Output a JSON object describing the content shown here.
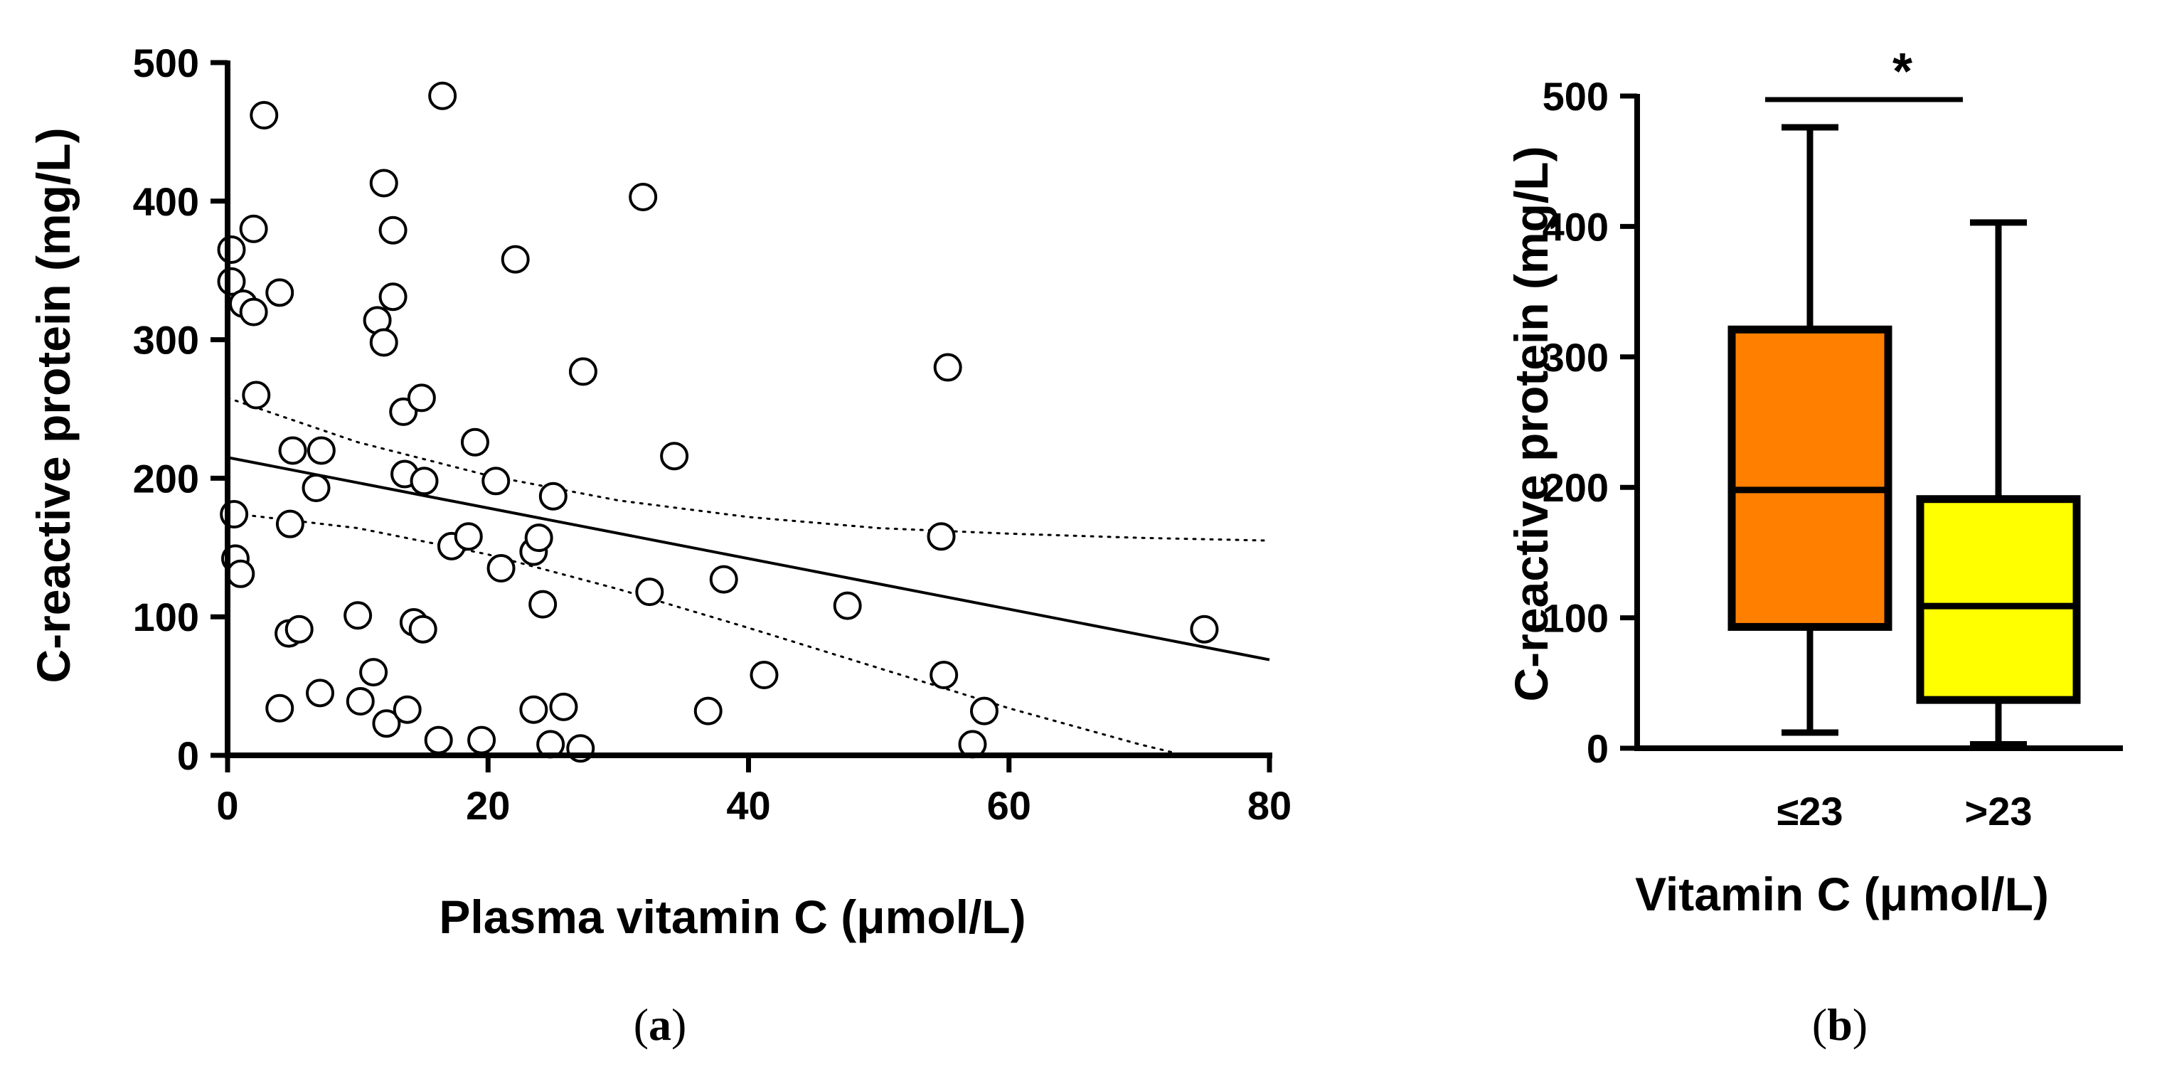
{
  "chart_data": [
    {
      "type": "scatter",
      "panel_label": {
        "open": "(",
        "letter": "a",
        "close": ")"
      },
      "xlabel": "Plasma vitamin C (μmol/L)",
      "ylabel": "C-reactive protein (mg/L)",
      "xlim": [
        0,
        80
      ],
      "ylim": [
        0,
        500
      ],
      "xticks": [
        0,
        20,
        40,
        60,
        80
      ],
      "yticks": [
        0,
        100,
        200,
        300,
        400,
        500
      ],
      "grid": false,
      "points": [
        [
          0.3,
          365
        ],
        [
          0.3,
          342
        ],
        [
          1.2,
          326
        ],
        [
          2.0,
          380
        ],
        [
          2.0,
          320
        ],
        [
          2.8,
          462
        ],
        [
          2.2,
          260
        ],
        [
          4.0,
          334
        ],
        [
          0.5,
          174
        ],
        [
          0.6,
          142
        ],
        [
          1.0,
          131
        ],
        [
          5.0,
          220
        ],
        [
          4.8,
          167
        ],
        [
          4.7,
          88
        ],
        [
          5.5,
          91
        ],
        [
          7.2,
          220
        ],
        [
          6.8,
          193
        ],
        [
          4.0,
          34
        ],
        [
          7.1,
          45
        ],
        [
          10.0,
          101
        ],
        [
          10.2,
          39
        ],
        [
          11.2,
          60
        ],
        [
          12.2,
          23
        ],
        [
          11.5,
          314
        ],
        [
          12.0,
          298
        ],
        [
          12.0,
          413
        ],
        [
          12.7,
          379
        ],
        [
          12.7,
          331
        ],
        [
          13.5,
          248
        ],
        [
          13.6,
          203
        ],
        [
          14.9,
          258
        ],
        [
          15.1,
          198
        ],
        [
          14.3,
          96
        ],
        [
          15.0,
          91
        ],
        [
          13.8,
          33
        ],
        [
          16.5,
          476
        ],
        [
          16.2,
          11
        ],
        [
          17.2,
          151
        ],
        [
          18.5,
          158
        ],
        [
          19.0,
          226
        ],
        [
          19.5,
          11
        ],
        [
          20.6,
          198
        ],
        [
          21.0,
          135
        ],
        [
          22.1,
          358
        ],
        [
          23.5,
          147
        ],
        [
          23.9,
          157
        ],
        [
          24.2,
          109
        ],
        [
          23.5,
          33
        ],
        [
          25.0,
          187
        ],
        [
          24.8,
          8
        ],
        [
          25.8,
          35
        ],
        [
          27.3,
          277
        ],
        [
          27.1,
          5
        ],
        [
          31.9,
          403
        ],
        [
          32.4,
          118
        ],
        [
          34.3,
          216
        ],
        [
          36.9,
          32
        ],
        [
          38.1,
          127
        ],
        [
          41.2,
          58
        ],
        [
          47.6,
          108
        ],
        [
          54.8,
          158
        ],
        [
          55.3,
          280
        ],
        [
          55.0,
          58
        ],
        [
          57.2,
          8
        ],
        [
          58.1,
          32
        ],
        [
          75.0,
          91
        ]
      ],
      "regression": {
        "x": [
          0,
          80
        ],
        "y": [
          215,
          69
        ]
      },
      "ci_upper": {
        "x": [
          0,
          10,
          20,
          30,
          40,
          50,
          60,
          70,
          80
        ],
        "y": [
          258,
          226,
          202,
          184,
          172,
          164,
          160,
          157,
          155
        ]
      },
      "ci_lower": {
        "x": [
          0,
          10,
          20,
          30,
          40,
          50,
          60,
          70,
          73.5
        ],
        "y": [
          175,
          164,
          145,
          120,
          92,
          63,
          34,
          8,
          0
        ]
      }
    },
    {
      "type": "box",
      "panel_label": {
        "open": "(",
        "letter": "b",
        "close": ")"
      },
      "xlabel": "Vitamin C (μmol/L)",
      "ylabel": "C-reactive protein (mg/L)",
      "ylim": [
        0,
        500
      ],
      "yticks": [
        0,
        100,
        200,
        300,
        400,
        500
      ],
      "grid": false,
      "categories": [
        "≤23",
        ">23"
      ],
      "boxes": [
        {
          "name": "≤23",
          "min": 12,
          "q1": 93,
          "median": 198,
          "q3": 321,
          "max": 476,
          "color": "#FF7F00"
        },
        {
          "name": ">23",
          "min": 3,
          "q1": 37,
          "median": 109,
          "q3": 191,
          "max": 403,
          "color": "#FFFF00"
        }
      ],
      "significance": {
        "label": "*",
        "between": [
          "≤23",
          ">23"
        ],
        "y": 500
      }
    }
  ]
}
